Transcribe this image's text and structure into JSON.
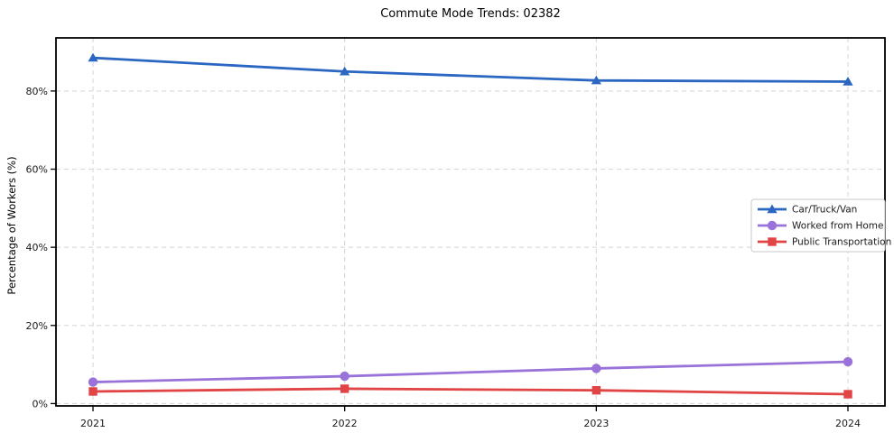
{
  "chart_data": {
    "type": "line",
    "title": "Commute Mode Trends: 02382",
    "xlabel": "",
    "ylabel": "Percentage of Workers (%)",
    "categories": [
      "2021",
      "2022",
      "2023",
      "2024"
    ],
    "x": [
      2021,
      2022,
      2023,
      2024
    ],
    "y_ticks": [
      0,
      20,
      40,
      60,
      80
    ],
    "y_tick_labels": [
      "0%",
      "20%",
      "40%",
      "60%",
      "80%"
    ],
    "ylim": [
      -0.6,
      93.6
    ],
    "grid": true,
    "grid_style": "dashed",
    "grid_color": "#d8d8d8",
    "axis_color": "#000000",
    "legend_position": "center-right",
    "series": [
      {
        "name": "Car/Truck/Van",
        "color": "#2a66c2",
        "marker": "triangle-up",
        "values": [
          88.5,
          85.0,
          82.7,
          82.4
        ]
      },
      {
        "name": "Worked from Home",
        "color": "#9973d9",
        "marker": "circle",
        "values": [
          5.5,
          7.0,
          9.0,
          10.7
        ]
      },
      {
        "name": "Public Transportation",
        "color": "#e14444",
        "marker": "square",
        "values": [
          3.1,
          3.8,
          3.4,
          2.4
        ]
      }
    ]
  }
}
